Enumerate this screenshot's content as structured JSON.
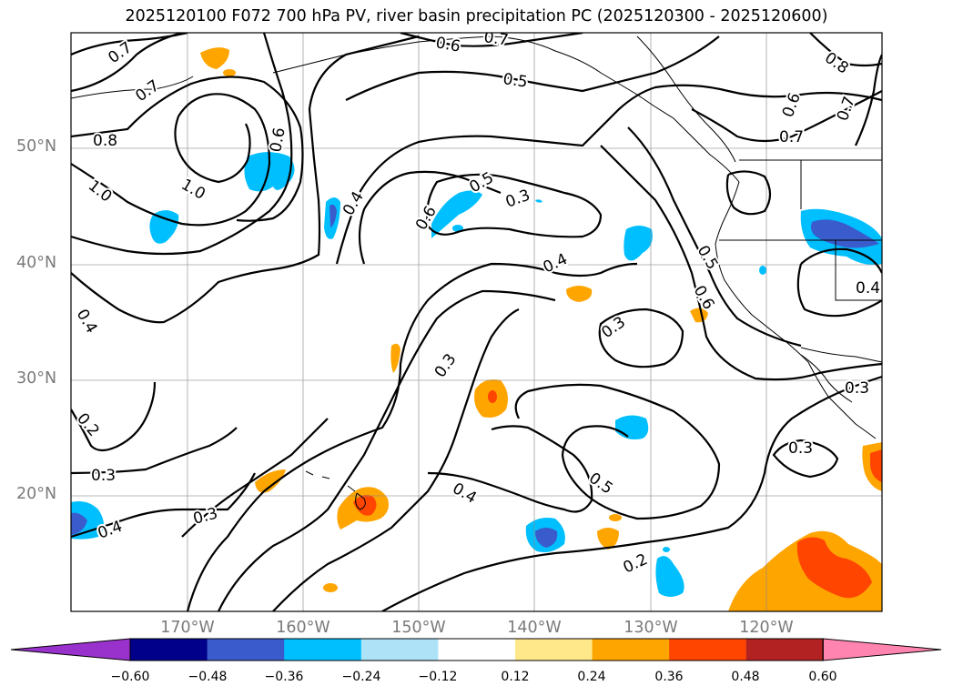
{
  "title": "2025120100 F072 700 hPa PV, river basin precipitation PC (2025120300 - 2025120600)",
  "map": {
    "lat_labels": [
      "50°N",
      "40°N",
      "30°N",
      "20°N"
    ],
    "lon_labels": [
      "170°W",
      "160°W",
      "150°W",
      "140°W",
      "130°W",
      "120°W"
    ],
    "contour_labels": [
      "0.7",
      "0.7",
      "0.6",
      "0.7",
      "0.5",
      "0.8",
      "0.7",
      "0.6",
      "0.7",
      "0.8",
      "1.0",
      "1.0",
      "0.6",
      "0.4",
      "0.5",
      "0.3",
      "0.6",
      "0.4",
      "0.6",
      "0.5",
      "0.4",
      "0.3",
      "0.3",
      "0.2",
      "0.3",
      "0.3",
      "0.4",
      "0.5",
      "0.3",
      "0.4",
      "0.3",
      "0.2",
      "0.4"
    ],
    "contour_var": "700 hPa PV",
    "shading_var": "river basin precipitation PC"
  },
  "colorbar": {
    "ticks": [
      "−0.60",
      "−0.48",
      "−0.36",
      "−0.24",
      "−0.12",
      "0.12",
      "0.24",
      "0.36",
      "0.48",
      "0.60"
    ],
    "colors": [
      "#9932cc",
      "#00008b",
      "#3a5bcc",
      "#00bfff",
      "#ade2f7",
      "#ffffff",
      "#ffe88a",
      "#ffa500",
      "#ff4500",
      "#b22222",
      "#ff85b0"
    ]
  }
}
